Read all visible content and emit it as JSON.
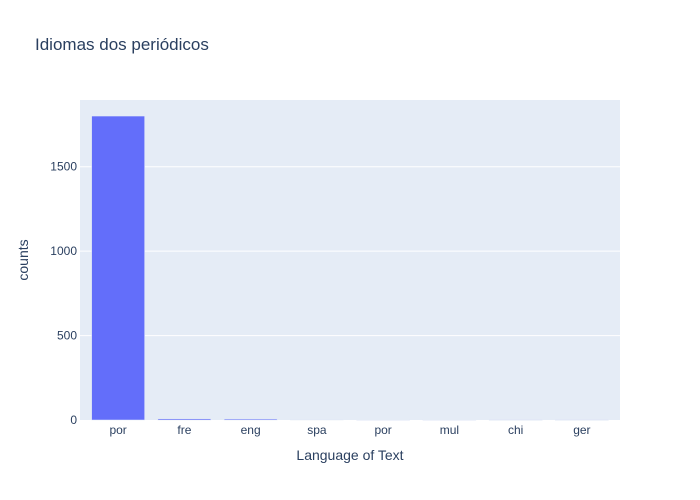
{
  "chart_data": {
    "type": "bar",
    "title": "Idiomas dos periódicos",
    "xlabel": "Language of Text",
    "ylabel": "counts",
    "categories": [
      "por",
      "fre",
      "eng",
      "spa",
      "por ",
      "mul",
      "chi",
      "ger"
    ],
    "values": [
      1800,
      7,
      6,
      3,
      2,
      2,
      1,
      1
    ],
    "ylim": [
      0,
      1895
    ],
    "yticks": [
      0,
      500,
      1000,
      1500
    ],
    "grid": true,
    "colors": {
      "bar": "#636efa",
      "plot_bg": "#e5ecf6",
      "grid": "#ffffff",
      "text": "#2a3f5f"
    }
  }
}
